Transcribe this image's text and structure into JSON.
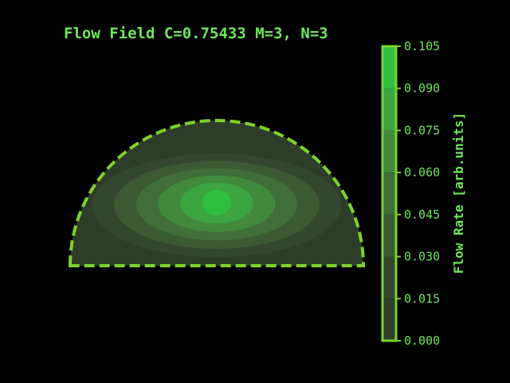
{
  "chart_data": {
    "type": "heatmap",
    "title": "Flow Field C=0.75433 M=3, N=3",
    "colorbar": {
      "label": "Flow Rate [arb.units]",
      "range": [
        0.0,
        0.105
      ],
      "levels": [
        0.0,
        0.015,
        0.03,
        0.045,
        0.06,
        0.075,
        0.09,
        0.105
      ],
      "tick_labels": [
        "0.000",
        "0.015",
        "0.030",
        "0.045",
        "0.060",
        "0.075",
        "0.090",
        "0.105"
      ],
      "level_colors": [
        "#2e3d29",
        "#34472e",
        "#3b5a34",
        "#3f6e39",
        "#418a3d",
        "#3ca53f",
        "#31bf3f"
      ]
    },
    "domain_shape": "semicircle",
    "peak_region_value": 0.1,
    "boundary_style": "dashed",
    "colors": {
      "background": "#000000",
      "text": "#6fe65a",
      "boundary": "#7ed12c"
    }
  }
}
